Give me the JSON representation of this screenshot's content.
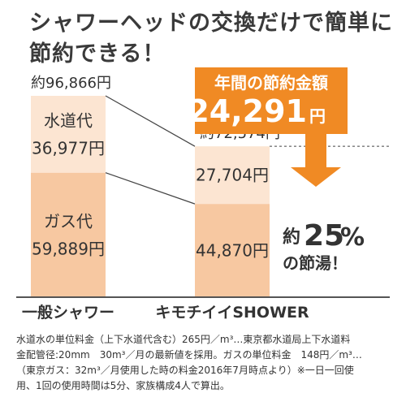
{
  "headline": {
    "line1": "シャワーヘッドの交換だけで簡単に",
    "line2": "節約できる！"
  },
  "chart_data": {
    "type": "bar",
    "stacked": true,
    "categories": [
      "一般シャワー",
      "キモチイイSHOWER"
    ],
    "series": [
      {
        "name": "ガス代",
        "values": [
          59889,
          44870
        ],
        "color": "#f7c8a1"
      },
      {
        "name": "水道代",
        "values": [
          36977,
          27704
        ],
        "color": "#fce5d2"
      }
    ],
    "bar_labels": [
      {
        "segments": [
          {
            "lines": [
              "ガス代",
              "59,889円"
            ]
          },
          {
            "lines": [
              "水道代",
              "36,977円"
            ]
          }
        ]
      },
      {
        "segments": [
          {
            "lines": [
              "44,870円"
            ]
          },
          {
            "lines": [
              "27,704円"
            ]
          }
        ]
      }
    ],
    "totals": [
      96866,
      72574
    ],
    "total_labels": [
      "約96,866円",
      "約72,574円"
    ],
    "ylim": [
      0,
      96866
    ],
    "grid": false,
    "callout": {
      "title": "年間の節約金額",
      "amount": "24,291",
      "unit": "円",
      "color": "#f08a24"
    },
    "savings_badge": {
      "prefix": "約",
      "value": "25",
      "unit": "%",
      "suffix": "の節湯！"
    }
  },
  "footnote": [
    "水道水の単位料金（上下水道代含む）265円／m³…東京都水道局上下水道料",
    "金配管径:20mm　30m³／月の最新値を採用。ガスの単位料金　148円／m³…",
    "（東京ガス：32m³／月使用した時の料金2016年7月時点より）※一日一回使",
    "用、1回の使用時間は5分、家族構成4人で算出。"
  ]
}
